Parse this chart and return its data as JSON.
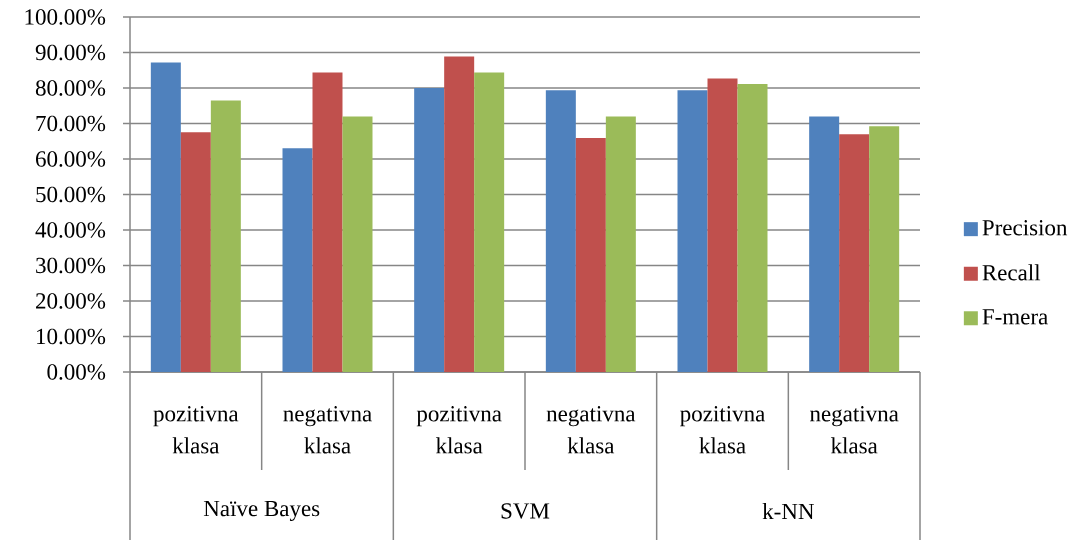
{
  "chart_data": {
    "type": "bar",
    "categories": [
      "pozitivna klasa",
      "negativna klasa",
      "pozitivna klasa",
      "negativna klasa",
      "pozitivna klasa",
      "negativna klasa"
    ],
    "series": [
      {
        "name": "Precision",
        "color": "#4f81bd",
        "values": [
          87.2,
          63.0,
          80.0,
          79.4,
          79.4,
          72.0
        ]
      },
      {
        "name": "Recall",
        "color": "#c0504d",
        "values": [
          67.5,
          84.4,
          88.9,
          65.9,
          82.7,
          67.0
        ]
      },
      {
        "name": "F-mera",
        "color": "#9bbb59",
        "values": [
          76.5,
          72.0,
          84.4,
          72.0,
          81.1,
          69.2
        ]
      }
    ],
    "ylim": [
      0,
      100
    ],
    "yticks": [
      {
        "value": 0,
        "label": "0.00%"
      },
      {
        "value": 10,
        "label": "10.00%"
      },
      {
        "value": 20,
        "label": "20.00%"
      },
      {
        "value": 30,
        "label": "30.00%"
      },
      {
        "value": 40,
        "label": "40.00%"
      },
      {
        "value": 50,
        "label": "50.00%"
      },
      {
        "value": 60,
        "label": "60.00%"
      },
      {
        "value": 70,
        "label": "70.00%"
      },
      {
        "value": 80,
        "label": "80.00%"
      },
      {
        "value": 90,
        "label": "90.00%"
      },
      {
        "value": 100,
        "label": "100.00%"
      }
    ],
    "grid": "y",
    "legend": "right",
    "annotations": [
      "Naïve Bayes",
      "SVM",
      "k-NN"
    ]
  }
}
